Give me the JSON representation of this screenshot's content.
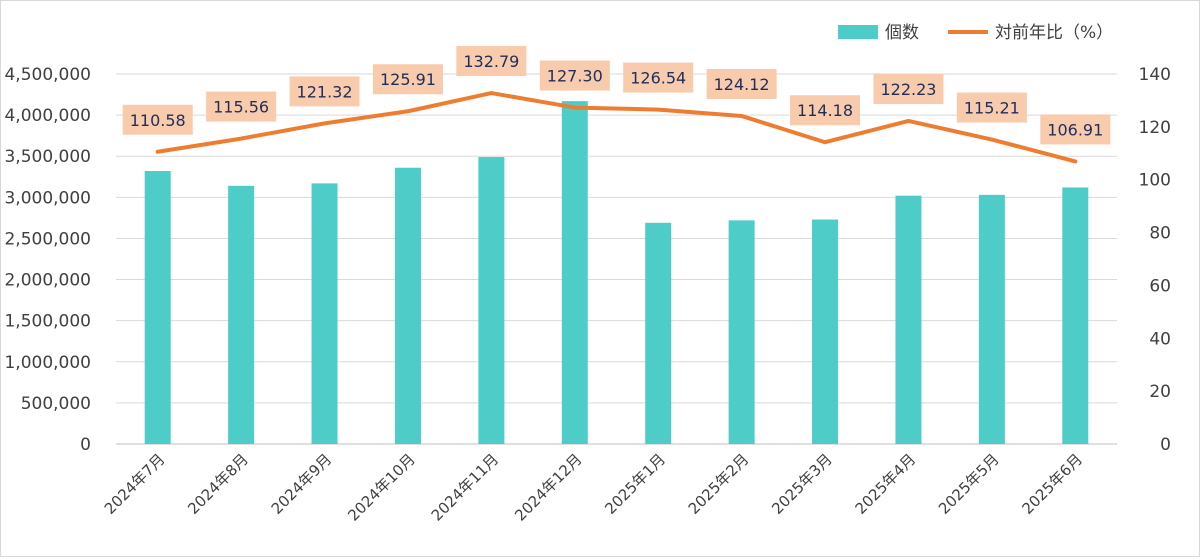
{
  "chart_data": {
    "type": "bar",
    "categories": [
      "2024年7月",
      "2024年8月",
      "2024年9月",
      "2024年10月",
      "2024年11月",
      "2024年12月",
      "2025年1月",
      "2025年2月",
      "2025年3月",
      "2025年4月",
      "2025年5月",
      "2025年6月"
    ],
    "series": [
      {
        "name": "個数",
        "type": "bar",
        "axis": "left",
        "color": "#4ecdc8",
        "values": [
          3320000,
          3140000,
          3170000,
          3360000,
          3490000,
          4170000,
          2690000,
          2720000,
          2730000,
          3020000,
          3030000,
          3120000
        ]
      },
      {
        "name": "対前年比（%）",
        "type": "line",
        "axis": "right",
        "color": "#ed7d31",
        "values": [
          110.58,
          115.56,
          121.32,
          125.91,
          132.79,
          127.3,
          126.54,
          124.12,
          114.18,
          122.23,
          115.21,
          106.91
        ],
        "data_labels": [
          "110.58",
          "115.56",
          "121.32",
          "125.91",
          "132.79",
          "127.30",
          "126.54",
          "124.12",
          "114.18",
          "122.23",
          "115.21",
          "106.91"
        ],
        "label_bg_color": "#f8cbad"
      }
    ],
    "y_left": {
      "ylim": [
        0,
        4500000
      ],
      "ticks": [
        0,
        500000,
        1000000,
        1500000,
        2000000,
        2500000,
        3000000,
        3500000,
        4000000,
        4500000
      ],
      "tick_labels": [
        "0",
        "500,000",
        "1,000,000",
        "1,500,000",
        "2,000,000",
        "2,500,000",
        "3,000,000",
        "3,500,000",
        "4,000,000",
        "4,500,000"
      ]
    },
    "y_right": {
      "ylim": [
        0,
        140
      ],
      "ticks": [
        0,
        20,
        40,
        60,
        80,
        100,
        120,
        140
      ],
      "tick_labels": [
        "0",
        "20",
        "40",
        "60",
        "80",
        "100",
        "120",
        "140"
      ]
    },
    "grid": true,
    "legend_position": "top-right",
    "title": "",
    "xlabel": "",
    "ylabel": ""
  }
}
